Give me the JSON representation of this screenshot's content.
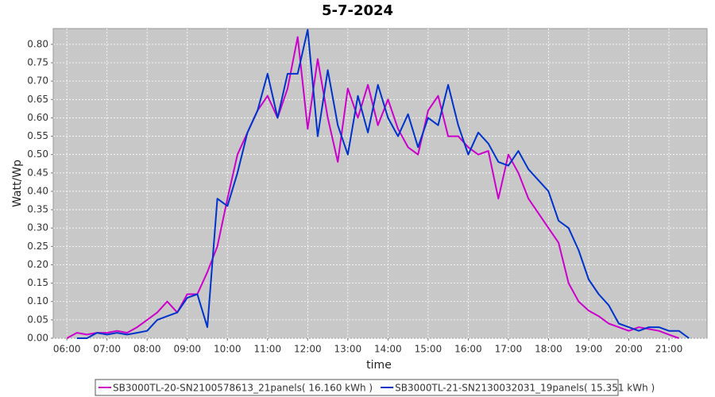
{
  "chart_data": {
    "type": "line",
    "title": "5-7-2024",
    "x_label": "time",
    "y_label": "Watt/Wp",
    "x": [
      6.0,
      6.25,
      6.5,
      6.75,
      7.0,
      7.25,
      7.5,
      7.75,
      8.0,
      8.25,
      8.5,
      8.75,
      9.0,
      9.25,
      9.5,
      9.75,
      10.0,
      10.25,
      10.5,
      10.75,
      11.0,
      11.25,
      11.5,
      11.75,
      12.0,
      12.25,
      12.5,
      12.75,
      13.0,
      13.25,
      13.5,
      13.75,
      14.0,
      14.25,
      14.5,
      14.75,
      15.0,
      15.25,
      15.5,
      15.75,
      16.0,
      16.25,
      16.5,
      16.75,
      17.0,
      17.25,
      17.5,
      17.75,
      18.0,
      18.25,
      18.5,
      18.75,
      19.0,
      19.25,
      19.5,
      19.75,
      20.0,
      20.25,
      20.5,
      20.75,
      21.0,
      21.25,
      21.5
    ],
    "series": [
      {
        "name": "SB3000TL-20-SN2100578613_21panels( 16.160 kWh )",
        "color": "#cc00cc",
        "values": [
          0.0,
          0.015,
          0.01,
          0.015,
          0.015,
          0.02,
          0.015,
          0.03,
          0.05,
          0.07,
          0.1,
          0.07,
          0.12,
          0.12,
          0.18,
          0.25,
          0.38,
          0.5,
          0.56,
          0.62,
          0.66,
          0.6,
          0.68,
          0.82,
          0.57,
          0.76,
          0.6,
          0.48,
          0.68,
          0.6,
          0.69,
          0.58,
          0.65,
          0.57,
          0.52,
          0.5,
          0.62,
          0.66,
          0.55,
          0.55,
          0.52,
          0.5,
          0.51,
          0.38,
          0.5,
          0.45,
          0.38,
          0.34,
          0.3,
          0.26,
          0.15,
          0.1,
          0.075,
          0.06,
          0.04,
          0.03,
          0.02,
          0.03,
          0.025,
          0.02,
          0.01,
          0.0,
          null
        ]
      },
      {
        "name": "SB3000TL-21-SN2130032031_19panels( 15.351 kWh )",
        "color": "#0033cc",
        "values": [
          null,
          0.0,
          0.0,
          0.015,
          0.01,
          0.015,
          0.01,
          0.015,
          0.02,
          0.05,
          0.06,
          0.07,
          0.11,
          0.12,
          0.03,
          0.38,
          0.36,
          0.45,
          0.56,
          0.62,
          0.72,
          0.6,
          0.72,
          0.72,
          0.84,
          0.55,
          0.73,
          0.58,
          0.5,
          0.66,
          0.56,
          0.69,
          0.6,
          0.55,
          0.61,
          0.52,
          0.6,
          0.58,
          0.69,
          0.58,
          0.5,
          0.56,
          0.53,
          0.48,
          0.47,
          0.51,
          0.46,
          0.43,
          0.4,
          0.32,
          0.3,
          0.24,
          0.16,
          0.12,
          0.09,
          0.04,
          0.03,
          0.02,
          0.03,
          0.03,
          0.02,
          0.02,
          0.0
        ]
      }
    ],
    "xlim": [
      5.66,
      21.95
    ],
    "xticks": [
      {
        "value": 6,
        "label": "06:00"
      },
      {
        "value": 7,
        "label": "07:00"
      },
      {
        "value": 8,
        "label": "08:00"
      },
      {
        "value": 9,
        "label": "09:00"
      },
      {
        "value": 10,
        "label": "10:00"
      },
      {
        "value": 11,
        "label": "11:00"
      },
      {
        "value": 12,
        "label": "12:00"
      },
      {
        "value": 13,
        "label": "13:00"
      },
      {
        "value": 14,
        "label": "14:00"
      },
      {
        "value": 15,
        "label": "15:00"
      },
      {
        "value": 16,
        "label": "16:00"
      },
      {
        "value": 17,
        "label": "17:00"
      },
      {
        "value": 18,
        "label": "18:00"
      },
      {
        "value": 19,
        "label": "19:00"
      },
      {
        "value": 20,
        "label": "20:00"
      },
      {
        "value": 21,
        "label": "21:00"
      }
    ],
    "ylim": [
      0,
      0.843
    ],
    "yticks": [
      {
        "value": 0,
        "label": "0.00"
      },
      {
        "value": 0.05,
        "label": "0.05"
      },
      {
        "value": 0.1,
        "label": "0.10"
      },
      {
        "value": 0.15,
        "label": "0.15"
      },
      {
        "value": 0.2,
        "label": "0.20"
      },
      {
        "value": 0.25,
        "label": "0.25"
      },
      {
        "value": 0.3,
        "label": "0.30"
      },
      {
        "value": 0.35,
        "label": "0.35"
      },
      {
        "value": 0.4,
        "label": "0.40"
      },
      {
        "value": 0.45,
        "label": "0.45"
      },
      {
        "value": 0.5,
        "label": "0.50"
      },
      {
        "value": 0.55,
        "label": "0.55"
      },
      {
        "value": 0.6,
        "label": "0.60"
      },
      {
        "value": 0.65,
        "label": "0.65"
      },
      {
        "value": 0.7,
        "label": "0.70"
      },
      {
        "value": 0.75,
        "label": "0.75"
      },
      {
        "value": 0.8,
        "label": "0.80"
      }
    ],
    "grid": true
  }
}
